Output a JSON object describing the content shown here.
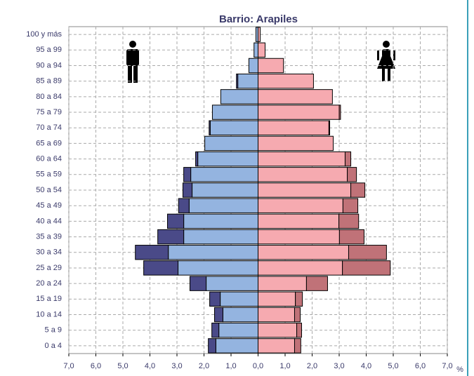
{
  "chart_data": {
    "type": "pyramid",
    "title": "Barrio: Arapiles",
    "x_label": "%",
    "categories": [
      "100 y más",
      "95 a 99",
      "90 a 94",
      "85 a 89",
      "80 a 84",
      "75 a 79",
      "70 a 74",
      "65 a 69",
      "60 a 64",
      "55 a 59",
      "50 a 54",
      "45 a 49",
      "40 a 44",
      "35 a 39",
      "30 a 34",
      "25 a 29",
      "20 a 24",
      "15 a 19",
      "10 a 14",
      "5 a 9",
      "0 a 4"
    ],
    "series": [
      {
        "color": "#94b4e0",
        "side": "left",
        "values": [
          0.08,
          0.15,
          0.34,
          0.75,
          1.38,
          1.69,
          1.77,
          1.97,
          2.23,
          2.49,
          2.44,
          2.55,
          2.75,
          2.75,
          3.32,
          2.96,
          1.92,
          1.4,
          1.3,
          1.45,
          1.56
        ]
      },
      {
        "color": "#4a4a88",
        "side": "left",
        "values": [
          0,
          0,
          0,
          0.05,
          0,
          0,
          0.04,
          0,
          0.08,
          0.26,
          0.34,
          0.39,
          0.6,
          0.96,
          1.22,
          1.27,
          0.6,
          0.39,
          0.31,
          0.26,
          0.28
        ]
      },
      {
        "color": "#f6aab0",
        "side": "right",
        "values": [
          0.08,
          0.26,
          0.94,
          2.05,
          2.75,
          3.0,
          2.62,
          2.78,
          3.22,
          3.3,
          3.43,
          3.14,
          2.99,
          3.01,
          3.35,
          3.12,
          1.79,
          1.38,
          1.35,
          1.43,
          1.35
        ]
      },
      {
        "color": "#c07278",
        "side": "right",
        "values": [
          0,
          0,
          0,
          0,
          0,
          0.05,
          0.03,
          0,
          0.21,
          0.34,
          0.52,
          0.55,
          0.73,
          0.91,
          1.4,
          1.77,
          0.78,
          0.26,
          0.21,
          0.18,
          0.23
        ]
      }
    ],
    "xlim": [
      -7,
      7
    ],
    "xticks": [
      {
        "value": -7,
        "label": "7,0"
      },
      {
        "value": -6,
        "label": "6,0"
      },
      {
        "value": -5,
        "label": "5,0"
      },
      {
        "value": -4,
        "label": "4,0"
      },
      {
        "value": -3,
        "label": "3,0"
      },
      {
        "value": -2,
        "label": "2,0"
      },
      {
        "value": -1,
        "label": "1,0"
      },
      {
        "value": 0,
        "label": "0,0"
      },
      {
        "value": 1,
        "label": "1,0"
      },
      {
        "value": 2,
        "label": "2,0"
      },
      {
        "value": 3,
        "label": "3,0"
      },
      {
        "value": 4,
        "label": "4,0"
      },
      {
        "value": 5,
        "label": "5,0"
      },
      {
        "value": 6,
        "label": "6,0"
      },
      {
        "value": 7,
        "label": "7,0"
      }
    ],
    "grid": true
  }
}
